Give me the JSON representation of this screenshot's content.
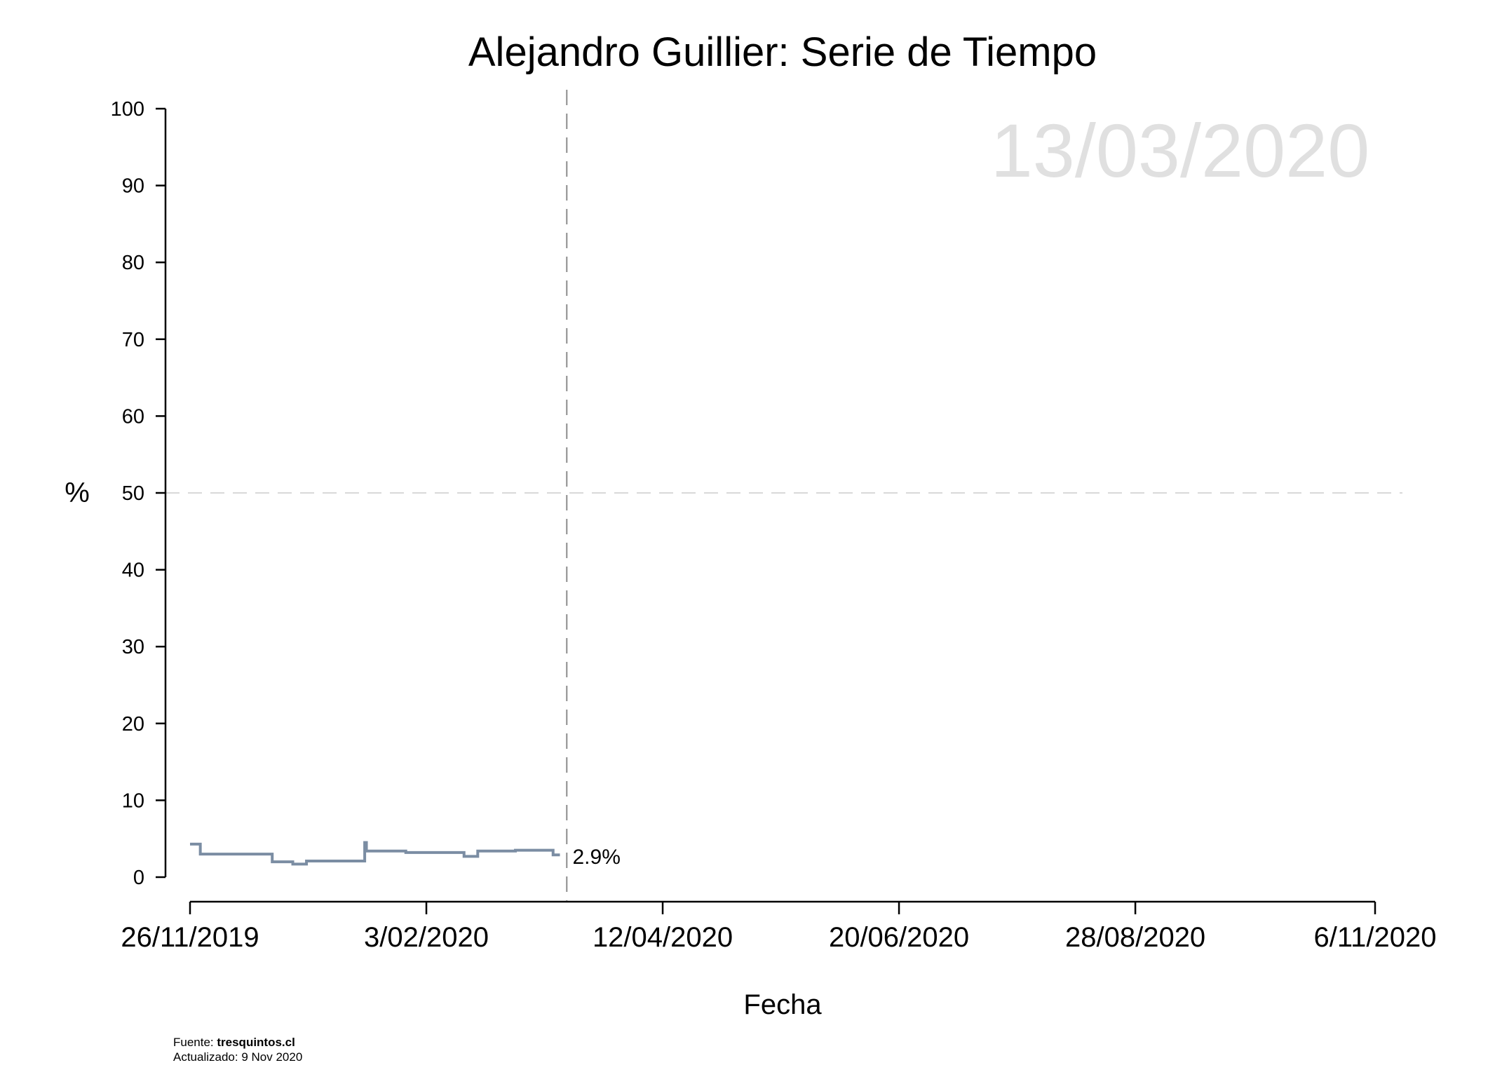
{
  "chart_data": {
    "type": "line",
    "title": "Alejandro Guillier: Serie de Tiempo",
    "xlabel": "Fecha",
    "ylabel": "%",
    "ylim": [
      0,
      100
    ],
    "yticks": [
      0,
      10,
      20,
      30,
      40,
      50,
      60,
      70,
      80,
      90,
      100
    ],
    "ytick_labels": [
      "0",
      "10",
      "20",
      "30",
      "40",
      "50",
      "60",
      "70",
      "80",
      "90",
      "100"
    ],
    "x_day_range": [
      0,
      346
    ],
    "xtick_days": [
      0,
      69,
      138,
      207,
      276,
      346
    ],
    "xtick_labels": [
      "26/11/2019",
      "3/02/2020",
      "12/04/2020",
      "20/06/2020",
      "28/08/2020",
      "6/11/2020"
    ],
    "reference_line_y": 50,
    "current_date": "13/03/2020",
    "current_day": 110,
    "series": [
      {
        "name": "Alejandro Guillier",
        "color": "#7b8da3",
        "step": true,
        "days": [
          0,
          3,
          24,
          30,
          34,
          51,
          51.5,
          52,
          63,
          80,
          84,
          95,
          106,
          108
        ],
        "values": [
          4.3,
          3.0,
          2.0,
          1.7,
          2.1,
          4.5,
          3.4,
          3.4,
          3.2,
          2.7,
          3.4,
          3.5,
          2.9,
          2.9
        ]
      }
    ],
    "end_label": "2.9%"
  },
  "footer": {
    "source_prefix": "Fuente: ",
    "source_site": "tresquintos.cl",
    "updated": "Actualizado: 9 Nov 2020"
  }
}
